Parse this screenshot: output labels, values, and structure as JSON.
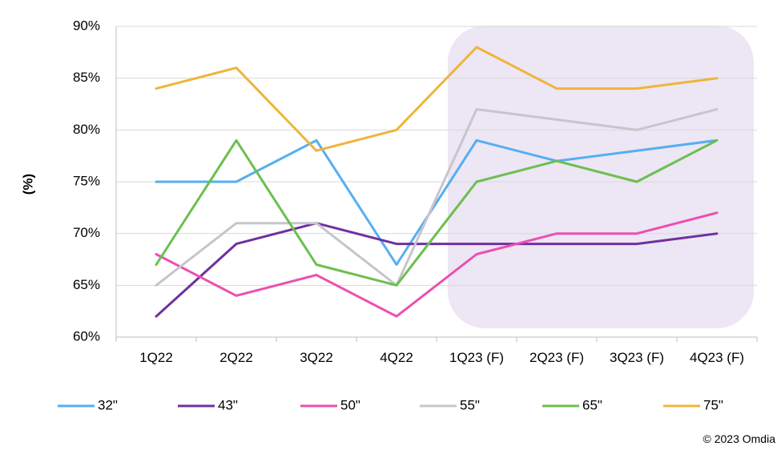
{
  "chart_data": {
    "type": "line",
    "ylabel": "(%)",
    "xlabel": "",
    "categories": [
      "1Q22",
      "2Q22",
      "3Q22",
      "4Q22",
      "1Q23 (F)",
      "2Q23 (F)",
      "3Q23 (F)",
      "4Q23 (F)"
    ],
    "yticks": [
      "60%",
      "65%",
      "70%",
      "75%",
      "80%",
      "85%",
      "90%"
    ],
    "ylim": [
      60,
      90
    ],
    "grid": "horizontal",
    "legend_position": "bottom",
    "forecast_highlight": {
      "from": "1Q23 (F)",
      "to": "4Q23 (F)",
      "color": "#ede6f4"
    },
    "series": [
      {
        "name": "32\"",
        "color": "#56aef1",
        "values": [
          75,
          75,
          79,
          67,
          79,
          77,
          78,
          79
        ]
      },
      {
        "name": "43\"",
        "color": "#7030a0",
        "values": [
          62,
          69,
          71,
          69,
          69,
          69,
          69,
          70
        ]
      },
      {
        "name": "50\"",
        "color": "#ec4fb0",
        "values": [
          68,
          64,
          66,
          62,
          68,
          70,
          70,
          72
        ]
      },
      {
        "name": "55\"",
        "color": "#c8c4cc",
        "values": [
          65,
          71,
          71,
          65,
          82,
          81,
          80,
          82
        ]
      },
      {
        "name": "65\"",
        "color": "#6cbf4f",
        "values": [
          67,
          79,
          67,
          65,
          75,
          77,
          75,
          79
        ]
      },
      {
        "name": "75\"",
        "color": "#f0b43a",
        "values": [
          84,
          86,
          78,
          80,
          88,
          84,
          84,
          85
        ]
      }
    ]
  },
  "footer": {
    "credit": "© 2023 Omdia"
  }
}
